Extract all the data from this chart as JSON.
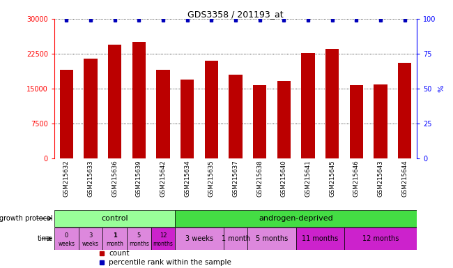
{
  "title": "GDS3358 / 201193_at",
  "samples": [
    "GSM215632",
    "GSM215633",
    "GSM215636",
    "GSM215639",
    "GSM215642",
    "GSM215634",
    "GSM215635",
    "GSM215637",
    "GSM215638",
    "GSM215640",
    "GSM215641",
    "GSM215645",
    "GSM215646",
    "GSM215643",
    "GSM215644"
  ],
  "bar_values": [
    19000,
    21500,
    24500,
    25000,
    19000,
    17000,
    21000,
    18000,
    15800,
    16700,
    22700,
    23500,
    15700,
    15900,
    20500
  ],
  "percentile_values": [
    99,
    99,
    99,
    99,
    99,
    99,
    99,
    99,
    99,
    99,
    99,
    99,
    99,
    99,
    99
  ],
  "bar_color": "#bb0000",
  "percentile_color": "#0000bb",
  "ylim_left": [
    0,
    30000
  ],
  "ylim_right": [
    0,
    100
  ],
  "yticks_left": [
    0,
    7500,
    15000,
    22500,
    30000
  ],
  "yticks_right": [
    0,
    25,
    50,
    75,
    100
  ],
  "control_label": "control",
  "androgen_label": "androgen-deprived",
  "control_color": "#99ff99",
  "androgen_color": "#44dd44",
  "time_control_labels": [
    "0\nweeks",
    "3\nweeks",
    "1\nmonth",
    "5\nmonths",
    "12\nmonths"
  ],
  "time_control_colors": [
    "#dd88dd",
    "#dd88dd",
    "#dd88dd",
    "#dd88dd",
    "#cc22cc"
  ],
  "androgen_groups": [
    {
      "label": "3 weeks",
      "start": 5,
      "end": 6,
      "color": "#dd88dd"
    },
    {
      "label": "1 month",
      "start": 7,
      "end": 7,
      "color": "#dd88dd"
    },
    {
      "label": "5 months",
      "start": 8,
      "end": 9,
      "color": "#dd88dd"
    },
    {
      "label": "11 months",
      "start": 10,
      "end": 11,
      "color": "#cc22cc"
    },
    {
      "label": "12 months",
      "start": 12,
      "end": 14,
      "color": "#cc22cc"
    }
  ],
  "n_control": 5,
  "n_androgen": 10,
  "growth_protocol_label": "growth protocol",
  "time_label": "time",
  "legend_count": "count",
  "legend_percentile": "percentile rank within the sample",
  "bg_color": "#ffffff",
  "xlabels_bg": "#d0d0d0"
}
